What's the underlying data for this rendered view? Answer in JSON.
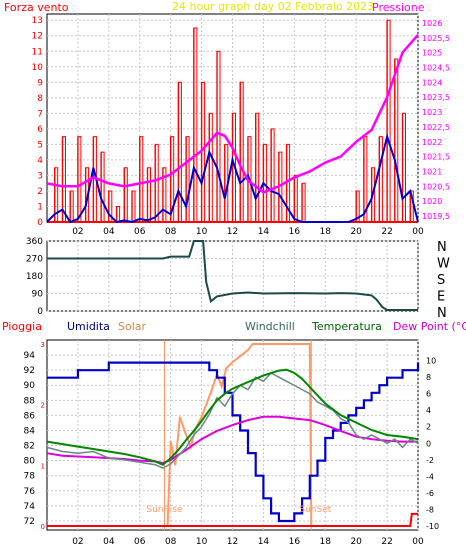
{
  "chart_data": [
    {
      "type": "line",
      "title": "24 hour graph day   02 Febbraio 2023",
      "left_label": "Forza vento",
      "right_label": "Pressione",
      "x_ticks": [
        "02",
        "04",
        "06",
        "08",
        "10",
        "12",
        "14",
        "16",
        "18",
        "20",
        "22",
        "00"
      ],
      "y_left_ticks": [
        "0",
        "1",
        "2",
        "3",
        "4",
        "5",
        "6",
        "7",
        "8",
        "9",
        "10",
        "11",
        "12",
        "13"
      ],
      "y_left_range": [
        0,
        13.4
      ],
      "y_right_ticks": [
        "1019,5",
        "1020",
        "1020,5",
        "1021",
        "1021,5",
        "1022",
        "1022,5",
        "1023",
        "1023,5",
        "1024",
        "1024,5",
        "1025",
        "1025,5",
        "1026"
      ],
      "y_right_range": [
        1019.3,
        1026.3
      ],
      "colors": {
        "gust": "#ff0000",
        "wind": "#0000cc",
        "pressure": "#ff00ff",
        "title": "#e8e800"
      },
      "series": [
        {
          "key": "wind",
          "x": [
            0,
            0.5,
            1,
            1.5,
            2,
            2.5,
            3,
            3.5,
            4,
            4.5,
            5,
            5.5,
            6,
            6.5,
            7,
            7.5,
            8,
            8.5,
            9,
            9.5,
            10,
            10.5,
            11,
            11.5,
            12,
            12.5,
            13,
            13.5,
            14,
            14.5,
            15,
            15.5,
            16,
            16.5,
            17,
            17.5,
            18,
            18.5,
            19,
            19.5,
            20,
            20.5,
            21,
            21.5,
            22,
            22.5,
            23,
            23.5,
            24
          ],
          "values": [
            0,
            0.5,
            0.8,
            0,
            0.2,
            1.0,
            3.5,
            1.5,
            0.5,
            0,
            0.1,
            0,
            0.2,
            0.1,
            0.3,
            0.8,
            0.5,
            2.0,
            1.0,
            3.5,
            2.5,
            4.5,
            3.5,
            1.5,
            4.0,
            2.5,
            3.0,
            1.5,
            2.5,
            2.0,
            1.8,
            1.0,
            0.2,
            0,
            0,
            0,
            0,
            0,
            0,
            0,
            0.2,
            0.5,
            1.5,
            3.5,
            5.5,
            4.0,
            1.5,
            2.0,
            0
          ]
        },
        {
          "key": "pressure",
          "x": [
            0,
            1,
            2,
            3,
            4,
            5,
            6,
            7,
            8,
            9,
            10,
            10.5,
            11,
            11.5,
            12,
            12.5,
            13,
            14,
            15,
            16,
            17,
            18,
            19,
            20,
            21,
            22,
            23,
            24
          ],
          "values": [
            1020.6,
            1020.5,
            1020.5,
            1020.8,
            1020.6,
            1020.5,
            1020.6,
            1020.7,
            1020.9,
            1021.3,
            1021.7,
            1022.0,
            1022.3,
            1022.2,
            1021.8,
            1021.2,
            1020.7,
            1020.3,
            1020.5,
            1020.8,
            1021.0,
            1021.3,
            1021.5,
            1022.0,
            1022.4,
            1023.5,
            1025.0,
            1025.6
          ]
        },
        {
          "key": "gust",
          "x": [
            0.5,
            1,
            1.5,
            2,
            2.5,
            3,
            3.5,
            4,
            4.5,
            5,
            5.5,
            6,
            6.5,
            7,
            7.5,
            8,
            8.5,
            9,
            9.5,
            10,
            10.5,
            11,
            11.5,
            12,
            12.5,
            13,
            13.5,
            14,
            14.5,
            15,
            15.5,
            16,
            16.5,
            20,
            20.5,
            21,
            21.5,
            22,
            22.5,
            23,
            23.5
          ],
          "values": [
            3.5,
            5.5,
            2,
            5.5,
            3.5,
            5.5,
            4.5,
            2,
            1,
            3.5,
            2,
            5.5,
            3.5,
            5,
            3.5,
            5.5,
            9,
            5.5,
            12.5,
            9,
            7,
            11,
            5,
            7,
            9,
            5.5,
            7,
            5,
            6,
            4.5,
            5,
            3,
            2.5,
            2,
            5.5,
            3.5,
            5.5,
            13,
            10.5,
            7,
            2
          ]
        }
      ]
    },
    {
      "type": "line",
      "name": "wind-direction",
      "y_ticks": [
        "360",
        "270",
        "180",
        "90",
        "0"
      ],
      "y_range": [
        0,
        360
      ],
      "side_labels": [
        "N",
        "W",
        "S",
        "E",
        "N"
      ],
      "color": "#1a4a4a",
      "x": [
        0,
        7.5,
        8,
        9.2,
        9.5,
        9.8,
        10.1,
        10.3,
        10.6,
        11,
        12,
        13,
        14,
        16,
        18,
        19,
        20,
        21,
        21.3,
        21.7,
        22,
        24
      ],
      "values": [
        270,
        270,
        280,
        280,
        360,
        360,
        360,
        150,
        50,
        75,
        90,
        95,
        90,
        92,
        90,
        92,
        90,
        80,
        60,
        20,
        5,
        5
      ]
    },
    {
      "type": "line",
      "labels": {
        "rain": "Pioggia",
        "humidity": "Umidita",
        "solar": "Solar",
        "windchill": "Windchill",
        "temperature": "Temperatura",
        "dewpoint": "Dew Point (°C)"
      },
      "label_colors": {
        "rain": "#ff0000",
        "humidity": "#000080",
        "solar": "#cc8844",
        "windchill": "#336666",
        "temperature": "#006600",
        "dewpoint": "#cc00cc"
      },
      "y_left_ticks": [
        "72",
        "74",
        "76",
        "78",
        "80",
        "82",
        "84",
        "86",
        "88",
        "90",
        "92",
        "94"
      ],
      "y_left_range": [
        70.8,
        96
      ],
      "y_right_ticks": [
        "-10",
        "-8",
        "-6",
        "-4",
        "-2",
        "0",
        "2",
        "4",
        "6",
        "8",
        "10"
      ],
      "y_right_range": [
        -10.5,
        12.5
      ],
      "rain_ticks": [
        "0",
        "1",
        "2",
        "3"
      ],
      "sunrise": 7.6,
      "sunset": 17.1,
      "sunrise_label": "SunRise",
      "sunset_label": "SunSet",
      "series": [
        {
          "key": "solar",
          "color": "#ff9966",
          "x": [
            7.6,
            7.8,
            8.0,
            8.3,
            8.6,
            9.0,
            9.3,
            9.6,
            10.0,
            10.3,
            10.6,
            11.0,
            11.3,
            11.6,
            12.0,
            12.5,
            13.0,
            13.3,
            13.6,
            14.0,
            14.5,
            15.0,
            15.5,
            16.0,
            16.5,
            17.0,
            17.1
          ],
          "values": [
            0,
            0,
            1.4,
            1.0,
            1.8,
            1.5,
            1.3,
            1.6,
            1.8,
            2.0,
            2.2,
            2.5,
            2.3,
            2.6,
            2.7,
            2.8,
            2.9,
            3.0,
            3.0,
            3.0,
            3.0,
            3.0,
            3.0,
            3.0,
            3.0,
            3.0,
            0
          ]
        },
        {
          "key": "humidity",
          "color": "#0000cc",
          "x": [
            0,
            1,
            2,
            3,
            4,
            5,
            6,
            7,
            8,
            9,
            10,
            10.5,
            11,
            11.5,
            12,
            12.5,
            13,
            13.5,
            14,
            14.5,
            15,
            15.5,
            16,
            16.5,
            17,
            17.5,
            18,
            18.5,
            19,
            19.5,
            20,
            20.5,
            21,
            21.5,
            22,
            22.5,
            23,
            23.5,
            24
          ],
          "values": [
            91,
            91,
            92,
            92,
            93,
            93,
            93,
            93,
            93,
            93,
            93,
            92,
            91,
            89,
            86,
            84,
            81,
            78,
            75,
            73,
            72,
            72,
            73,
            75,
            78,
            80,
            83,
            84,
            85,
            86,
            87,
            88,
            89,
            90,
            91,
            91,
            92,
            92,
            93
          ]
        },
        {
          "key": "dewpoint",
          "color": "#dd00dd",
          "x": [
            0,
            1,
            2,
            3,
            4,
            5,
            6,
            7,
            7.5,
            8,
            9,
            10,
            11,
            12,
            13,
            14,
            15,
            16,
            17,
            18,
            19,
            20,
            21,
            22,
            23,
            24
          ],
          "values": [
            -1.2,
            -1.5,
            -1.6,
            -1.7,
            -1.8,
            -1.9,
            -2.1,
            -2.2,
            -2.4,
            -2.0,
            -0.8,
            0.5,
            1.5,
            2.2,
            2.8,
            3.2,
            3.2,
            3.0,
            2.8,
            2.2,
            1.5,
            0.8,
            0.5,
            0.3,
            0.2,
            0.2
          ]
        },
        {
          "key": "windchill",
          "color": "#6a8888",
          "x": [
            0,
            1,
            2,
            3,
            4,
            5,
            6,
            7,
            7.5,
            8,
            8.5,
            9,
            9.5,
            10,
            10.5,
            11,
            11.5,
            12,
            12.5,
            13,
            13.5,
            14,
            14.5,
            15,
            15.5,
            16,
            16.5,
            17,
            17.5,
            18,
            18.5,
            19,
            19.5,
            20,
            20.5,
            21,
            21.5,
            22,
            22.5,
            23,
            23.5,
            24
          ],
          "values": [
            -0.5,
            -1.0,
            -1.2,
            -1.0,
            -1.8,
            -2.0,
            -2.3,
            -2.6,
            -3.0,
            -2.5,
            -1.5,
            -0.5,
            1.0,
            2.0,
            3.5,
            5.5,
            4.5,
            6.0,
            7.0,
            6.5,
            8.0,
            7.5,
            8.5,
            8.0,
            7.5,
            7.0,
            6.5,
            6.0,
            5.0,
            4.5,
            4.0,
            3.0,
            2.5,
            1.0,
            0.5,
            1.0,
            0.5,
            0.0,
            0.5,
            -0.5,
            0.5,
            0.0
          ]
        },
        {
          "key": "temperature",
          "color": "#008800",
          "x": [
            0,
            1,
            2,
            3,
            4,
            5,
            6,
            7,
            7.5,
            8,
            8.5,
            9,
            9.5,
            10,
            10.5,
            11,
            11.5,
            12,
            13,
            14,
            15,
            15.5,
            16,
            16.5,
            17,
            17.5,
            18,
            19,
            20,
            21,
            22,
            23,
            24
          ],
          "values": [
            0.2,
            -0.1,
            -0.4,
            -0.7,
            -1.0,
            -1.3,
            -1.7,
            -2.2,
            -2.6,
            -1.8,
            -0.8,
            0.4,
            1.5,
            2.7,
            4.0,
            5.2,
            6.0,
            6.6,
            7.4,
            8.2,
            8.8,
            8.9,
            8.5,
            7.8,
            6.8,
            5.8,
            4.8,
            3.4,
            2.5,
            1.6,
            1.0,
            0.8,
            0.5
          ]
        },
        {
          "key": "rain",
          "color": "#ff0000",
          "x": [
            0,
            23.5,
            23.6,
            24
          ],
          "values": [
            0,
            0,
            0.2,
            0.2
          ]
        }
      ]
    }
  ]
}
